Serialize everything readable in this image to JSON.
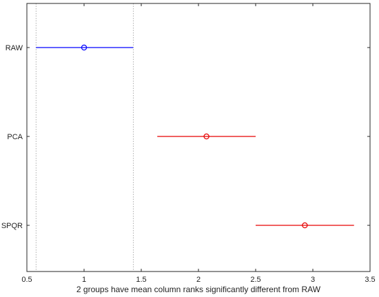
{
  "chart_data": {
    "type": "multiple-comparison",
    "xlabel": "2 groups have mean column ranks significantly different from RAW",
    "xlim": [
      0.5,
      3.5
    ],
    "xticks": [
      "0.5",
      "1",
      "1.5",
      "2",
      "2.5",
      "3",
      "3.5"
    ],
    "xtick_values": [
      0.5,
      1,
      1.5,
      2,
      2.5,
      3,
      3.5
    ],
    "grid": "off",
    "reference_lines": [
      0.58,
      1.43
    ],
    "groups": [
      {
        "name": "RAW",
        "mean": 1.0,
        "lower": 0.58,
        "upper": 1.43,
        "color": "#0000ff",
        "selected": true
      },
      {
        "name": "PCA",
        "mean": 2.07,
        "lower": 1.64,
        "upper": 2.5,
        "color": "#e60000",
        "selected": false
      },
      {
        "name": "SPQR",
        "mean": 2.93,
        "lower": 2.5,
        "upper": 3.36,
        "color": "#e60000",
        "selected": false
      }
    ]
  }
}
